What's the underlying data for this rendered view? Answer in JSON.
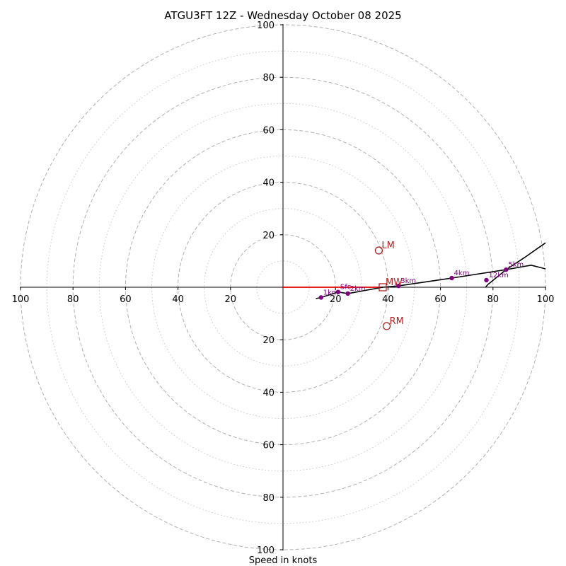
{
  "chart_data": {
    "type": "hodograph",
    "title": "ATGU3FT 12Z - Wednesday October 08 2025",
    "xlabel": "Speed in knots",
    "range": [
      -100,
      100
    ],
    "ring_major": [
      20,
      40,
      60,
      80,
      100
    ],
    "ring_minor": [
      10,
      30,
      50,
      70,
      90
    ],
    "x_ticks": [
      {
        "value": -100,
        "label": "100"
      },
      {
        "value": -80,
        "label": "80"
      },
      {
        "value": -60,
        "label": "60"
      },
      {
        "value": -40,
        "label": "40"
      },
      {
        "value": -20,
        "label": "20"
      },
      {
        "value": 20,
        "label": "20"
      },
      {
        "value": 40,
        "label": "40"
      },
      {
        "value": 60,
        "label": "60"
      },
      {
        "value": 80,
        "label": "80"
      },
      {
        "value": 100,
        "label": "100"
      }
    ],
    "y_ticks": [
      {
        "value": 100,
        "label": "100"
      },
      {
        "value": 80,
        "label": "80"
      },
      {
        "value": 60,
        "label": "60"
      },
      {
        "value": 40,
        "label": "40"
      },
      {
        "value": 20,
        "label": "20"
      },
      {
        "value": -20,
        "label": "20"
      },
      {
        "value": -40,
        "label": "40"
      },
      {
        "value": -60,
        "label": "60"
      },
      {
        "value": -80,
        "label": "80"
      },
      {
        "value": -100,
        "label": "100"
      }
    ],
    "hodograph_line": [
      [
        12.5,
        -4.3
      ],
      [
        14.5,
        -3.9
      ],
      [
        21.0,
        -1.8
      ],
      [
        24.7,
        -2.4
      ],
      [
        38.0,
        0.0
      ],
      [
        44.0,
        0.5
      ],
      [
        64.3,
        3.5
      ],
      [
        85.0,
        6.7
      ],
      [
        94.5,
        8.4
      ],
      [
        100.0,
        7.0
      ]
    ],
    "hodograph_upper": [
      [
        77.2,
        0.0
      ],
      [
        78.0,
        1.0
      ],
      [
        85.0,
        6.7
      ],
      [
        92.0,
        11.3
      ],
      [
        100.0,
        16.9
      ]
    ],
    "height_markers": [
      {
        "label": "Sfc",
        "u": 21.0,
        "v": -1.8
      },
      {
        "label": "1km",
        "u": 14.5,
        "v": -3.9
      },
      {
        "label": "2km",
        "u": 24.7,
        "v": -2.4
      },
      {
        "label": "3km",
        "u": 44.0,
        "v": 0.5
      },
      {
        "label": "4km",
        "u": 64.3,
        "v": 3.5
      },
      {
        "label": "5km",
        "u": 85.0,
        "v": 6.7
      },
      {
        "label": "12km",
        "u": 77.5,
        "v": 2.7
      }
    ],
    "mean_wind_vector": {
      "u": 38.0,
      "v": 0.0
    },
    "storm_motion": [
      {
        "label": "LM",
        "u": 36.5,
        "v": 14.0,
        "marker": "circle"
      },
      {
        "label": "MW",
        "u": 38.0,
        "v": 0.0,
        "marker": "square"
      },
      {
        "label": "RM",
        "u": 39.5,
        "v": -14.8,
        "marker": "circle"
      }
    ],
    "colors": {
      "axes": "#000000",
      "grid": "#b0b0b0",
      "hodograph": "#000000",
      "markers": "#800080",
      "storm": "#b22222",
      "vector": "#e00000"
    }
  }
}
